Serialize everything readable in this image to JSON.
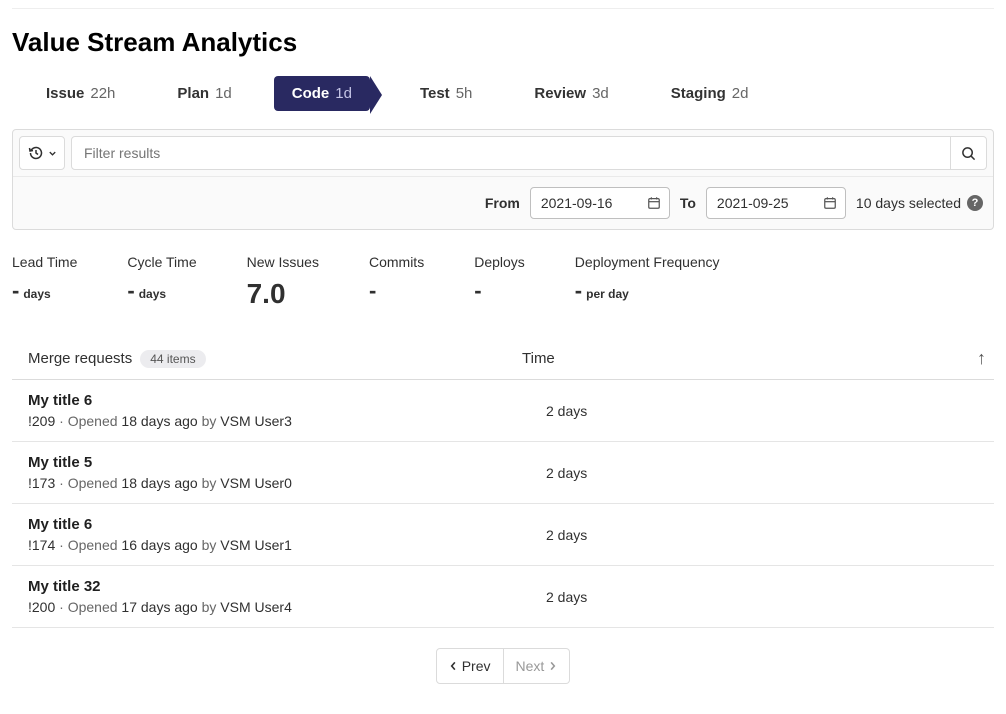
{
  "page_title": "Value Stream Analytics",
  "stages": [
    {
      "label": "Issue",
      "duration": "22h",
      "active": false
    },
    {
      "label": "Plan",
      "duration": "1d",
      "active": false
    },
    {
      "label": "Code",
      "duration": "1d",
      "active": true
    },
    {
      "label": "Test",
      "duration": "5h",
      "active": false
    },
    {
      "label": "Review",
      "duration": "3d",
      "active": false
    },
    {
      "label": "Staging",
      "duration": "2d",
      "active": false
    }
  ],
  "filter": {
    "placeholder": "Filter results",
    "from_label": "From",
    "to_label": "To",
    "date_from": "2021-09-16",
    "date_to": "2021-09-25",
    "range_text": "10 days selected"
  },
  "metrics": [
    {
      "label": "Lead Time",
      "value": "-",
      "unit": "days",
      "big": false
    },
    {
      "label": "Cycle Time",
      "value": "-",
      "unit": "days",
      "big": false
    },
    {
      "label": "New Issues",
      "value": "7.0",
      "unit": "",
      "big": true
    },
    {
      "label": "Commits",
      "value": "-",
      "unit": "",
      "big": false
    },
    {
      "label": "Deploys",
      "value": "-",
      "unit": "",
      "big": false
    },
    {
      "label": "Deployment Frequency",
      "value": "-",
      "unit": "per day",
      "big": false
    }
  ],
  "table": {
    "header_left": "Merge requests",
    "count_badge": "44 items",
    "header_time": "Time",
    "rows": [
      {
        "title": "My title 6",
        "ref": "!209",
        "opened": "18 days ago",
        "by": "VSM User3",
        "time": "2 days"
      },
      {
        "title": "My title 5",
        "ref": "!173",
        "opened": "18 days ago",
        "by": "VSM User0",
        "time": "2 days"
      },
      {
        "title": "My title 6",
        "ref": "!174",
        "opened": "16 days ago",
        "by": "VSM User1",
        "time": "2 days"
      },
      {
        "title": "My title 32",
        "ref": "!200",
        "opened": "17 days ago",
        "by": "VSM User4",
        "time": "2 days"
      }
    ]
  },
  "pagination": {
    "prev": "Prev",
    "next": "Next"
  },
  "sublabels": {
    "opened_prefix": "Opened",
    "by_prefix": "by"
  }
}
